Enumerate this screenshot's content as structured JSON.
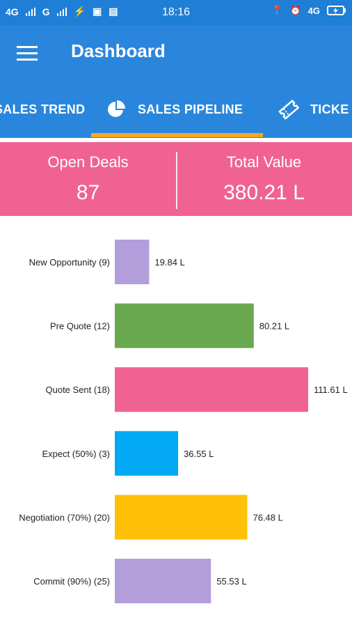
{
  "status_bar": {
    "left_items": [
      "4G",
      "G",
      "⚡",
      "▣",
      "▤"
    ],
    "time": "18:16",
    "right_items": [
      "📍",
      "⏰",
      "4G"
    ],
    "battery_icon": "battery-charging-icon"
  },
  "app_bar": {
    "title": "Dashboard",
    "menu_icon": "hamburger-menu-icon"
  },
  "tabs": [
    {
      "label": "SALES TREND",
      "icon": "",
      "selected": false
    },
    {
      "label": "SALES PIPELINE",
      "icon": "pie-chart-icon",
      "selected": true
    },
    {
      "label": "TICKE",
      "icon": "ticket-icon",
      "selected": false
    }
  ],
  "summary": {
    "open_deals_label": "Open Deals",
    "open_deals_value": "87",
    "total_value_label": "Total Value",
    "total_value_value": "380.21 L"
  },
  "chart_data": {
    "type": "bar",
    "orientation": "horizontal",
    "categories": [
      "New Opportunity (9)",
      "Pre Quote (12)",
      "Quote Sent (18)",
      "Expect (50%) (3)",
      "Negotiation (70%) (20)",
      "Commit (90%) (25)"
    ],
    "values": [
      19.84,
      80.21,
      111.61,
      36.55,
      76.48,
      55.53
    ],
    "data_labels": [
      "19.84 L",
      "80.21 L",
      "111.61 L",
      "36.55 L",
      "76.48 L",
      "55.53 L"
    ],
    "colors": [
      "#b39ddb",
      "#6aa84f",
      "#f06292",
      "#03a9f4",
      "#ffc107",
      "#b39ddb"
    ],
    "xlim": [
      0,
      111.61
    ]
  },
  "colors": {
    "primary": "#2a86dc",
    "status_bar": "#1f7fd6",
    "accent": "#f5a623",
    "summary_bg": "#f06292"
  }
}
